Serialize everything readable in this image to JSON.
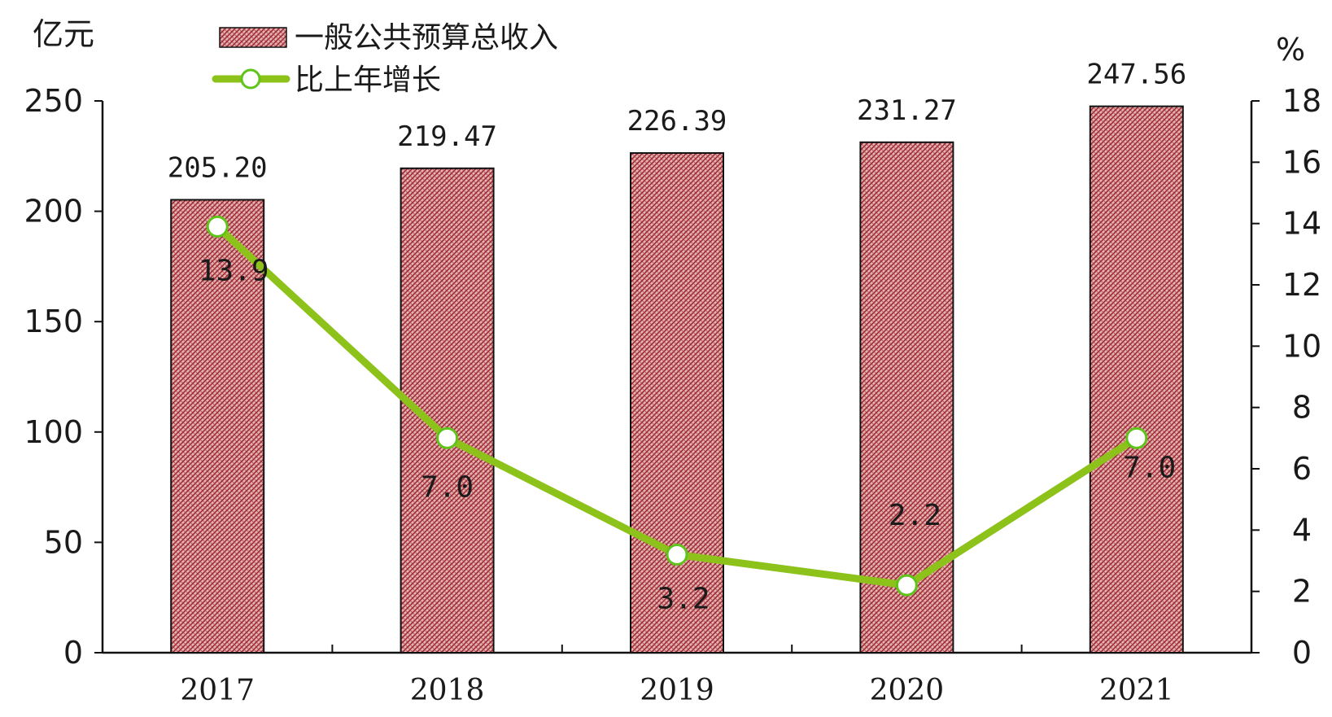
{
  "chart_data": {
    "type": "bar",
    "categories": [
      "2017",
      "2018",
      "2019",
      "2020",
      "2021"
    ],
    "left_axis": {
      "unit": "亿元",
      "ylim": [
        0,
        250
      ],
      "ticks": [
        0,
        50,
        100,
        150,
        200,
        250
      ]
    },
    "right_axis": {
      "unit": "%",
      "ylim": [
        0,
        18
      ],
      "ticks": [
        0,
        2,
        4,
        6,
        8,
        10,
        12,
        14,
        16,
        18
      ]
    },
    "series": [
      {
        "name": "一般公共预算总收入",
        "kind": "bar",
        "axis": "left",
        "values": [
          205.2,
          219.47,
          226.39,
          231.27,
          247.56
        ],
        "labels": [
          "205.20",
          "219.47",
          "226.39",
          "231.27",
          "247.56"
        ]
      },
      {
        "name": "比上年增长",
        "kind": "line",
        "axis": "right",
        "values": [
          13.9,
          7.0,
          3.2,
          2.2,
          7.0
        ],
        "labels": [
          "13.9",
          "7.0",
          "3.2",
          "2.2",
          "7.0"
        ]
      }
    ],
    "legend_position": "top-left",
    "grid": false,
    "colors": {
      "bar_fill": "#e6b3b3",
      "bar_hatch": "#9c2b33",
      "bar_edge": "#111111",
      "line": "#8cc21a",
      "marker_fill": "#ffffff",
      "marker_edge": "#5ec41a",
      "axis": "#111111"
    }
  }
}
